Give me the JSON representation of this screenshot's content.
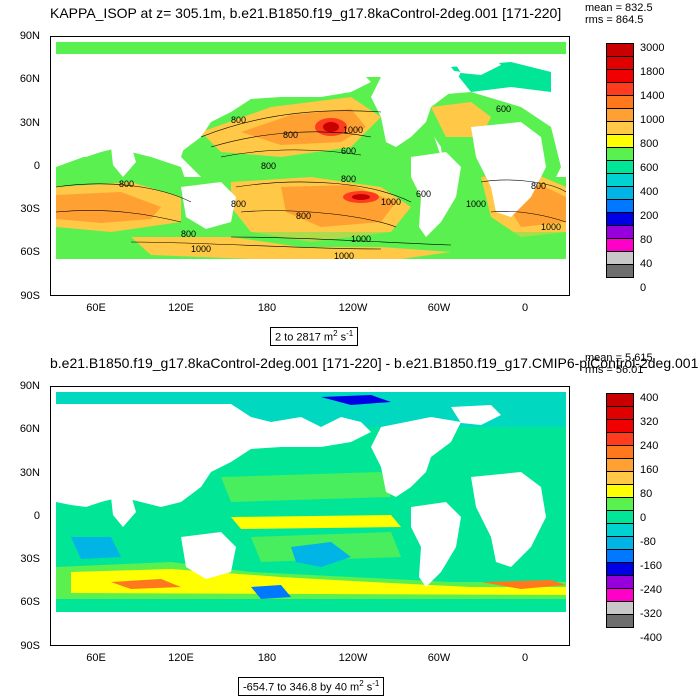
{
  "panel1": {
    "title": "KAPPA_ISOP at z= 305.1m, b.e21.B1850.f19_g17.8kaControl-2deg.001 [171-220]",
    "mean": "mean = 832.5",
    "rms": "rms = 864.5",
    "range_label": "2 to 2817 m",
    "range_units": "2 s",
    "colorbar_labels": [
      "3000",
      "1800",
      "1400",
      "1000",
      "800",
      "600",
      "400",
      "200",
      "80",
      "40",
      "0"
    ],
    "colorbar_colors": [
      "#c80000",
      "#f00000",
      "#ff3c1e",
      "#ff781e",
      "#ffa032",
      "#ffc846",
      "#ffff00",
      "#5af050",
      "#00e696",
      "#00d2d2",
      "#00b4e6",
      "#0078ff",
      "#0000e6",
      "#9600dc",
      "#ff00c8",
      "#c8c8c8",
      "#6e6e6e"
    ],
    "contour_labels": [
      "800",
      "800",
      "1000",
      "800",
      "600",
      "800",
      "800",
      "1000",
      "800",
      "600",
      "800",
      "1000",
      "1000",
      "800",
      "1000",
      "1000",
      "800",
      "600",
      "1000"
    ]
  },
  "panel2": {
    "title": "b.e21.B1850.f19_g17.8kaControl-2deg.001 [171-220] - b.e21.B1850.f19_g17.CMIP6-piControl-2deg.001 [451-",
    "mean": "mean = 5.615",
    "rms": "rms = 56.01",
    "range_label": "-654.7 to 346.8 by 40 m",
    "range_units": "2 s",
    "colorbar_labels": [
      "400",
      "320",
      "240",
      "160",
      "80",
      "0",
      "-80",
      "-160",
      "-240",
      "-320",
      "-400"
    ],
    "colorbar_colors": [
      "#c80000",
      "#f00000",
      "#ff3c1e",
      "#ff781e",
      "#ffa032",
      "#ffc846",
      "#ffff00",
      "#5af050",
      "#00e696",
      "#00d2d2",
      "#00b4e6",
      "#0078ff",
      "#0000e6",
      "#9600dc",
      "#ff00c8",
      "#c8c8c8",
      "#6e6e6e"
    ]
  },
  "axes": {
    "lat_labels": [
      "90N",
      "60N",
      "30N",
      "0",
      "30S",
      "60S",
      "90S"
    ],
    "lon_labels": [
      "60E",
      "120E",
      "180",
      "120W",
      "60W",
      "0"
    ]
  }
}
